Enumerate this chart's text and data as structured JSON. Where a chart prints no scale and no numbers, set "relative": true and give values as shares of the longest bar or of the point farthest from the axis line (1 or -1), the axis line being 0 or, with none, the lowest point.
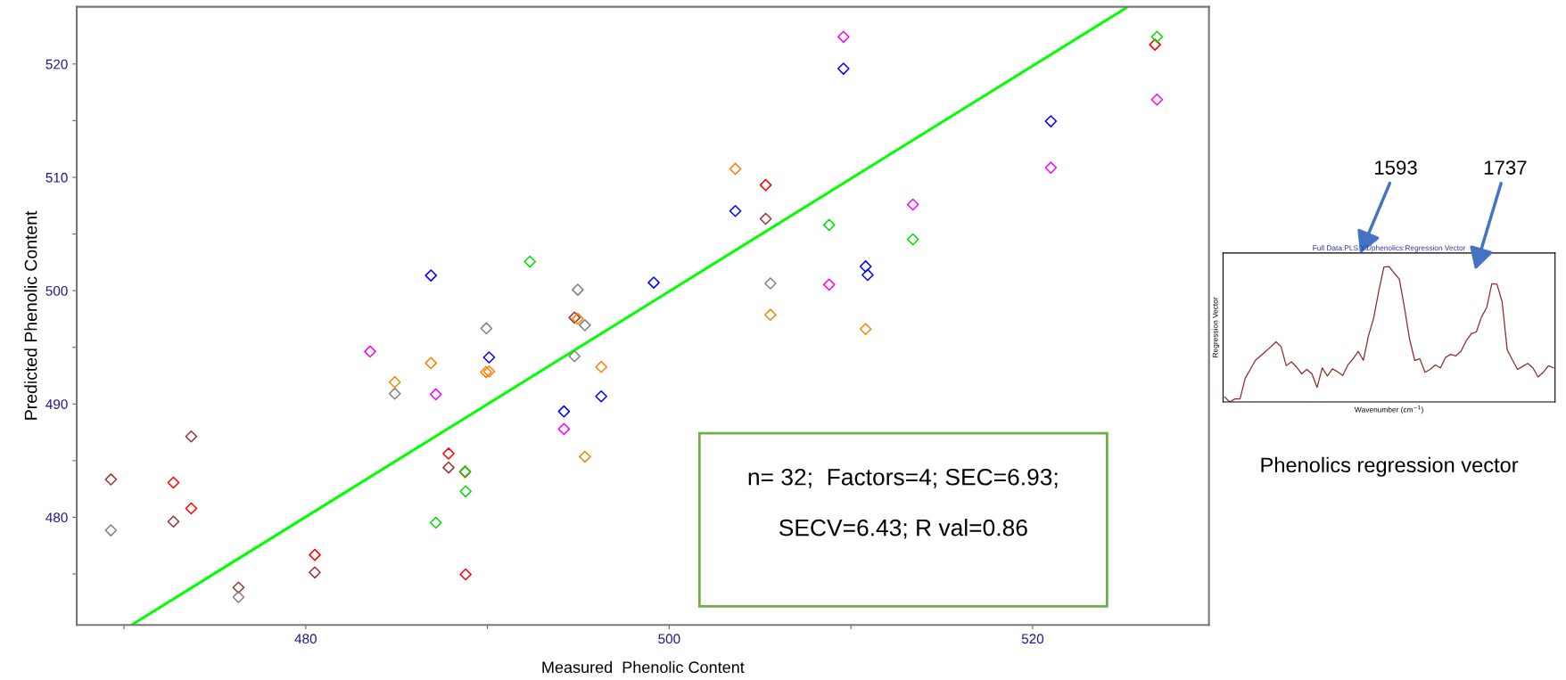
{
  "chart_data": [
    {
      "type": "scatter",
      "xlabel": "Measured  Phenolic Content",
      "ylabel": "Predicted Phenolic Content",
      "marker": "diamond",
      "xlim": [
        467.4,
        529.7
      ],
      "ylim": [
        470.5,
        525.05
      ],
      "xticks": [
        {
          "value": 470,
          "label": null
        },
        480,
        {
          "value": 490,
          "label": null
        },
        500,
        {
          "value": 510,
          "label": null
        },
        520
      ],
      "yticks": [
        {
          "value": 475,
          "label": null
        },
        480,
        {
          "value": 485,
          "label": null
        },
        490,
        {
          "value": 495,
          "label": null
        },
        500,
        {
          "value": 505,
          "label": null
        },
        510,
        {
          "value": 515,
          "label": null
        },
        520
      ],
      "annotations": [
        "n= 32;  Factors=4; SEC=6.93;",
        "SECV=6.43; R val=0.86"
      ],
      "series": [
        {
          "color": "#993333",
          "x": [
            469.28,
            472.72,
            473.7,
            476.3,
            480.5,
            487.86,
            494.79,
            505.31
          ],
          "values": [
            483.34,
            479.62,
            487.13,
            473.8,
            475.13,
            484.39,
            497.62,
            506.34
          ]
        },
        {
          "color": "#808080",
          "x": [
            469.28,
            476.3,
            484.9,
            489.94,
            494.97,
            495.36,
            494.79,
            505.57
          ],
          "values": [
            478.85,
            472.96,
            490.91,
            496.67,
            500.08,
            496.95,
            494.21,
            500.64
          ]
        },
        {
          "color": "#ff0000",
          "x": [
            472.72,
            473.7,
            480.5,
            487.86,
            488.77,
            488.8,
            505.31,
            526.73
          ],
          "values": [
            483.06,
            480.78,
            476.68,
            485.62,
            484.0,
            474.96,
            509.32,
            521.71
          ]
        },
        {
          "color": "#ff00ff",
          "x": [
            483.54,
            487.16,
            494.21,
            509.59,
            526.84,
            521.0,
            513.41,
            508.8
          ],
          "values": [
            494.63,
            490.85,
            487.79,
            522.4,
            516.86,
            510.85,
            507.6,
            500.53
          ]
        },
        {
          "color": "#ff8000",
          "x": [
            484.9,
            486.89,
            489.92,
            490.09,
            494.97,
            496.26,
            495.36,
            503.64,
            505.57,
            510.81
          ],
          "values": [
            491.93,
            493.61,
            492.81,
            492.87,
            497.52,
            493.27,
            485.34,
            510.75,
            497.87,
            496.61
          ]
        },
        {
          "color": "#00e000",
          "x": [
            487.16,
            488.77,
            488.8,
            492.34,
            526.84,
            508.8,
            513.41
          ],
          "values": [
            479.52,
            484.05,
            482.29,
            502.56,
            522.4,
            505.8,
            504.53
          ]
        },
        {
          "color": "#0000ff",
          "x": [
            486.89,
            490.09,
            496.26,
            494.21,
            509.59,
            521.0,
            503.64,
            499.15,
            510.81,
            510.92
          ],
          "values": [
            501.34,
            494.11,
            490.67,
            489.34,
            519.59,
            514.95,
            507.03,
            500.71,
            502.14,
            501.39
          ]
        },
        {
          "type": "line",
          "marker": "none",
          "color": "#00ff00",
          "x": [
            470.46,
            525.15
          ],
          "values": [
            470.54,
            524.96
          ]
        }
      ]
    },
    {
      "type": "line",
      "relative": true,
      "title": "Full Data:PLS:Y1/phenolics:Regression Vector",
      "xlabel": "Wavenumber (cm$^{−1}$)",
      "ylabel": "Regression Vector",
      "annotations": [
        "1593",
        "1737",
        "Phenolics regression vector"
      ],
      "categories": [
        null,
        null,
        null,
        null,
        null,
        null,
        null,
        null,
        null,
        null,
        null,
        null,
        null,
        null,
        null,
        null,
        null,
        null,
        null,
        null,
        null,
        null,
        null,
        null,
        null,
        null,
        null,
        null,
        null,
        null,
        null,
        null,
        null,
        null,
        null,
        null,
        null,
        null,
        null,
        null,
        null,
        null,
        null,
        null,
        null,
        null,
        null,
        null,
        null,
        null,
        null,
        null,
        null,
        null,
        null,
        null,
        null,
        null,
        null,
        null,
        null,
        null,
        null,
        null,
        null
      ],
      "series": [
        {
          "color": "#8b2a2a",
          "values": [
            0.036,
            0,
            0.022,
            0.022,
            0.173,
            0.24,
            0.307,
            0.34,
            0.373,
            0.407,
            0.444,
            0.407,
            0.267,
            0.296,
            0.258,
            0.207,
            0.24,
            0.207,
            0.107,
            0.251,
            0.191,
            0.244,
            0.222,
            0.196,
            0.273,
            0.318,
            0.373,
            0.307,
            0.489,
            0.618,
            0.818,
            0.996,
            1,
            0.951,
            0.907,
            0.696,
            0.462,
            0.307,
            0.318,
            0.218,
            0.24,
            0.273,
            0.251,
            0.329,
            0.351,
            0.34,
            0.373,
            0.451,
            0.502,
            0.518,
            0.629,
            0.696,
            0.873,
            0.869,
            0.74,
            0.384,
            0.311,
            0.24,
            0.262,
            0.284,
            0.251,
            0.184,
            0.218,
            0.267,
            0.251
          ]
        }
      ]
    }
  ]
}
